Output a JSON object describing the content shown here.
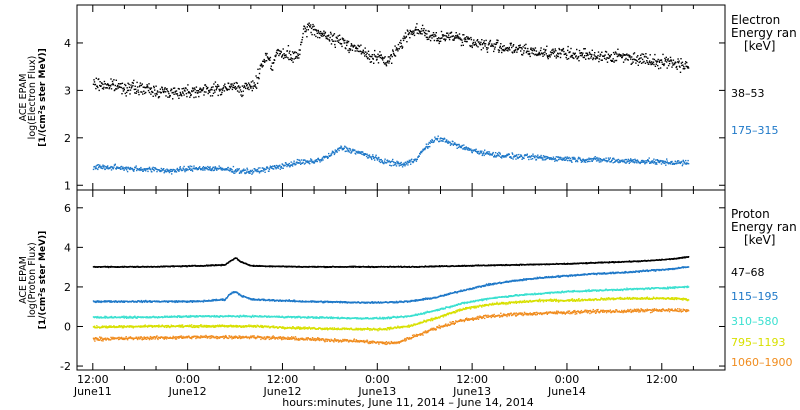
{
  "chart_data": [
    {
      "type": "scatter",
      "ylabel_lines": [
        "ACE EPAM",
        "log(Electron Flux)",
        "[1/(cm²s ster MeV)]"
      ],
      "ylim": [
        0.9,
        4.8
      ],
      "yticks": [
        1,
        2,
        3,
        4
      ],
      "legend_title": [
        "Electron",
        "Energy ran",
        "[keV]"
      ],
      "series": [
        {
          "name": "38–53",
          "color": "#000000",
          "band": 1.6,
          "x_hours": [
            0,
            6,
            12,
            18,
            24,
            30,
            36,
            40,
            42,
            44,
            46,
            48,
            50,
            52,
            54,
            56,
            58,
            60,
            62,
            64,
            66,
            68,
            70,
            72,
            74,
            76,
            78,
            80,
            82,
            84,
            88,
            92,
            96,
            100,
            104,
            108,
            112,
            116,
            120,
            124,
            128,
            132,
            136,
            140,
            144,
            148,
            152,
            156,
            160,
            164,
            168,
            172,
            176,
            180,
            184,
            188,
            192,
            196,
            200,
            204,
            208,
            212,
            216,
            220,
            224,
            226
          ],
          "y": [
            3.15,
            3.12,
            3.08,
            3.05,
            3.0,
            2.97,
            3.0,
            3.02,
            3.0,
            3.02,
            3.05,
            3.03,
            3.05,
            3.08,
            3.1,
            3.05,
            3.05,
            3.1,
            3.2,
            3.6,
            3.75,
            3.55,
            3.85,
            3.72,
            3.78,
            3.7,
            3.78,
            4.25,
            4.35,
            4.28,
            4.15,
            4.08,
            4.0,
            3.9,
            3.75,
            3.7,
            3.62,
            3.95,
            4.25,
            4.3,
            4.15,
            4.08,
            4.2,
            4.1,
            4.03,
            3.98,
            3.95,
            3.92,
            3.88,
            3.85,
            3.82,
            3.82,
            3.8,
            3.78,
            3.76,
            3.75,
            3.75,
            3.72,
            3.74,
            3.7,
            3.68,
            3.65,
            3.62,
            3.6,
            3.55,
            3.5
          ]
        },
        {
          "name": "175–315",
          "color": "#1e78c8",
          "band": 0.7,
          "x_hours": [
            0,
            10,
            20,
            30,
            40,
            50,
            60,
            70,
            74,
            78,
            82,
            86,
            90,
            94,
            98,
            102,
            106,
            110,
            114,
            118,
            122,
            126,
            130,
            134,
            138,
            142,
            146,
            150,
            154,
            160,
            168,
            176,
            184,
            192,
            200,
            208,
            216,
            226
          ],
          "y": [
            1.4,
            1.38,
            1.35,
            1.32,
            1.38,
            1.35,
            1.3,
            1.4,
            1.45,
            1.5,
            1.5,
            1.55,
            1.65,
            1.8,
            1.75,
            1.68,
            1.6,
            1.52,
            1.48,
            1.45,
            1.55,
            1.8,
            2.0,
            1.95,
            1.85,
            1.78,
            1.72,
            1.68,
            1.65,
            1.62,
            1.6,
            1.58,
            1.56,
            1.55,
            1.53,
            1.52,
            1.5,
            1.48
          ]
        }
      ]
    },
    {
      "type": "scatter",
      "ylabel_lines": [
        "ACE EPAM",
        "log(Proton Flux)",
        "[1/(cm²s ster MeV)]"
      ],
      "ylim": [
        -2.2,
        6.9
      ],
      "yticks": [
        -2,
        0,
        2,
        4,
        6
      ],
      "legend_title": [
        "Proton",
        "Energy ran",
        "[keV]"
      ],
      "series": [
        {
          "name": "47–68",
          "color": "#000000",
          "band": 0.3,
          "x_hours": [
            0,
            20,
            40,
            50,
            52,
            54,
            56,
            60,
            80,
            100,
            120,
            140,
            160,
            180,
            190,
            200,
            210,
            220,
            226
          ],
          "y": [
            3.05,
            3.05,
            3.1,
            3.15,
            3.35,
            3.5,
            3.3,
            3.1,
            3.05,
            3.05,
            3.05,
            3.1,
            3.15,
            3.2,
            3.25,
            3.3,
            3.35,
            3.45,
            3.55
          ]
        },
        {
          "name": "115–195",
          "color": "#1e78c8",
          "band": 0.5,
          "x_hours": [
            0,
            20,
            40,
            50,
            52,
            54,
            56,
            60,
            80,
            100,
            110,
            120,
            130,
            140,
            150,
            160,
            170,
            180,
            190,
            200,
            210,
            220,
            226
          ],
          "y": [
            1.3,
            1.3,
            1.3,
            1.4,
            1.7,
            1.8,
            1.6,
            1.4,
            1.3,
            1.25,
            1.25,
            1.3,
            1.5,
            1.85,
            2.15,
            2.35,
            2.5,
            2.6,
            2.7,
            2.75,
            2.85,
            2.95,
            3.05
          ]
        },
        {
          "name": "310–580",
          "color": "#3ae0d0",
          "band": 0.5,
          "x_hours": [
            0,
            20,
            40,
            60,
            80,
            100,
            110,
            120,
            130,
            140,
            150,
            160,
            170,
            180,
            190,
            200,
            210,
            220,
            226
          ],
          "y": [
            0.5,
            0.5,
            0.55,
            0.55,
            0.5,
            0.45,
            0.45,
            0.55,
            0.85,
            1.2,
            1.45,
            1.6,
            1.7,
            1.8,
            1.85,
            1.9,
            1.95,
            2.0,
            2.05
          ]
        },
        {
          "name": "795–1193",
          "color": "#d8e000",
          "band": 0.7,
          "x_hours": [
            0,
            20,
            40,
            60,
            80,
            100,
            110,
            120,
            130,
            140,
            150,
            160,
            170,
            180,
            190,
            200,
            210,
            220,
            226
          ],
          "y": [
            0.0,
            0.05,
            0.05,
            0.05,
            -0.05,
            -0.1,
            -0.1,
            0.05,
            0.45,
            0.9,
            1.15,
            1.25,
            1.35,
            1.35,
            1.4,
            1.45,
            1.45,
            1.45,
            1.4
          ]
        },
        {
          "name": "1060–1900",
          "color": "#f08c1e",
          "band": 1.0,
          "x_hours": [
            0,
            20,
            40,
            60,
            80,
            100,
            110,
            115,
            120,
            130,
            140,
            150,
            160,
            170,
            180,
            190,
            200,
            210,
            220,
            226
          ],
          "y": [
            -0.6,
            -0.55,
            -0.5,
            -0.5,
            -0.6,
            -0.7,
            -0.8,
            -0.8,
            -0.55,
            -0.05,
            0.35,
            0.55,
            0.65,
            0.7,
            0.75,
            0.8,
            0.8,
            0.85,
            0.85,
            0.85
          ]
        }
      ]
    }
  ],
  "x_axis": {
    "xlim_hours": [
      -6,
      240
    ],
    "ticks": [
      {
        "h": 0,
        "time": "12:00",
        "day": "June11"
      },
      {
        "h": 12,
        "time": "",
        "day": ""
      },
      {
        "h": 24,
        "time": "",
        "day": ""
      },
      {
        "h": 36,
        "time": "0:00",
        "day": "June12"
      },
      {
        "h": 48,
        "time": "",
        "day": ""
      },
      {
        "h": 60,
        "time": "",
        "day": ""
      },
      {
        "h": 72,
        "time": "12:00",
        "day": "June12"
      },
      {
        "h": 84,
        "time": "",
        "day": ""
      },
      {
        "h": 96,
        "time": "",
        "day": ""
      },
      {
        "h": 108,
        "time": "0:00",
        "day": "June13"
      },
      {
        "h": 120,
        "time": "",
        "day": ""
      },
      {
        "h": 132,
        "time": "",
        "day": ""
      },
      {
        "h": 144,
        "time": "12:00",
        "day": "June13"
      },
      {
        "h": 156,
        "time": "",
        "day": ""
      },
      {
        "h": 168,
        "time": "",
        "day": ""
      },
      {
        "h": 180,
        "time": "0:00",
        "day": "June14"
      },
      {
        "h": 192,
        "time": "",
        "day": ""
      },
      {
        "h": 204,
        "time": "",
        "day": ""
      },
      {
        "h": 216,
        "time": "12:00",
        "day": ""
      },
      {
        "h": 228,
        "time": "",
        "day": ""
      }
    ],
    "label": "hours:minutes, June 11, 2014 – June 14, 2014"
  }
}
